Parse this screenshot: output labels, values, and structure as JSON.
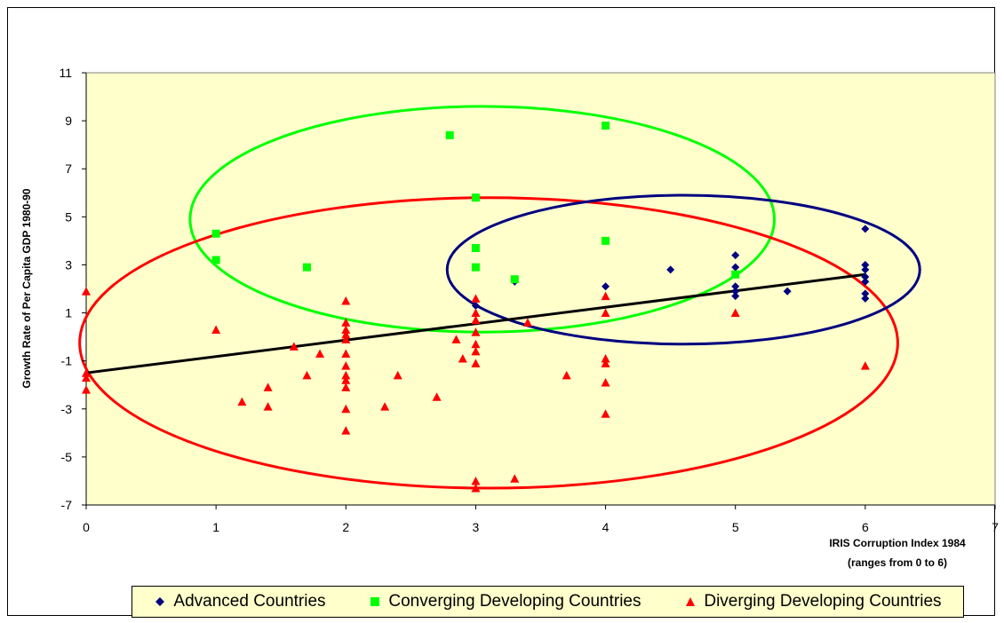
{
  "chart_data": {
    "type": "scatter",
    "title": "",
    "xlabel_line1": "IRIS Corruption Index 1984",
    "xlabel_line2": "(ranges from 0 to 6)",
    "ylabel": "Growth Rate of Per Capita GDP 1980-90",
    "xlim": [
      0,
      7
    ],
    "ylim": [
      -7,
      11
    ],
    "x_ticks": [
      "0",
      "1",
      "2",
      "3",
      "4",
      "5",
      "6",
      "7"
    ],
    "y_ticks": [
      "11",
      "9",
      "7",
      "5",
      "3",
      "1",
      "-1",
      "-3",
      "-5",
      "-7"
    ],
    "grid": false,
    "legend_position": "bottom",
    "plot_background": "#ffffcc",
    "series": [
      {
        "name": "Advanced Countries",
        "color": "#000080",
        "marker": "diamond",
        "points": [
          [
            3.0,
            1.3
          ],
          [
            3.3,
            2.3
          ],
          [
            4.0,
            2.1
          ],
          [
            4.5,
            2.8
          ],
          [
            5.0,
            3.4
          ],
          [
            5.0,
            2.9
          ],
          [
            5.0,
            2.1
          ],
          [
            5.0,
            1.9
          ],
          [
            5.0,
            1.7
          ],
          [
            5.4,
            1.9
          ],
          [
            6.0,
            4.5
          ],
          [
            6.0,
            3.0
          ],
          [
            6.0,
            2.8
          ],
          [
            6.0,
            2.5
          ],
          [
            6.0,
            2.3
          ],
          [
            6.0,
            1.8
          ],
          [
            6.0,
            1.6
          ]
        ]
      },
      {
        "name": "Converging Developing Countries",
        "color": "#00ff00",
        "marker": "square",
        "points": [
          [
            1.0,
            4.3
          ],
          [
            1.0,
            3.2
          ],
          [
            1.7,
            2.9
          ],
          [
            2.8,
            8.4
          ],
          [
            3.0,
            5.8
          ],
          [
            3.0,
            3.7
          ],
          [
            3.0,
            2.9
          ],
          [
            3.3,
            2.4
          ],
          [
            4.0,
            8.8
          ],
          [
            4.0,
            4.0
          ],
          [
            5.0,
            2.6
          ]
        ]
      },
      {
        "name": "Diverging Developing Countries",
        "color": "#ff0000",
        "marker": "triangle",
        "points": [
          [
            0.0,
            1.9
          ],
          [
            0.0,
            -1.5
          ],
          [
            0.0,
            -1.7
          ],
          [
            0.0,
            -2.2
          ],
          [
            1.0,
            0.3
          ],
          [
            1.2,
            -2.7
          ],
          [
            1.4,
            -2.1
          ],
          [
            1.4,
            -2.9
          ],
          [
            1.6,
            -0.4
          ],
          [
            1.7,
            -1.6
          ],
          [
            1.8,
            -0.7
          ],
          [
            2.0,
            1.5
          ],
          [
            2.0,
            0.6
          ],
          [
            2.0,
            0.3
          ],
          [
            2.0,
            0.1
          ],
          [
            2.0,
            -0.1
          ],
          [
            2.0,
            -0.7
          ],
          [
            2.0,
            -1.2
          ],
          [
            2.0,
            -1.6
          ],
          [
            2.0,
            -1.8
          ],
          [
            2.0,
            -2.1
          ],
          [
            2.0,
            -3.0
          ],
          [
            2.0,
            -3.9
          ],
          [
            2.3,
            -2.9
          ],
          [
            2.4,
            -1.6
          ],
          [
            2.7,
            -2.5
          ],
          [
            2.85,
            -0.1
          ],
          [
            2.9,
            -0.9
          ],
          [
            3.0,
            1.6
          ],
          [
            3.0,
            1.0
          ],
          [
            3.0,
            0.7
          ],
          [
            3.0,
            0.2
          ],
          [
            3.0,
            -0.3
          ],
          [
            3.0,
            -0.6
          ],
          [
            3.0,
            -1.1
          ],
          [
            3.0,
            -6.0
          ],
          [
            3.0,
            -6.3
          ],
          [
            3.3,
            -5.9
          ],
          [
            3.4,
            0.6
          ],
          [
            3.7,
            -1.6
          ],
          [
            4.0,
            1.7
          ],
          [
            4.0,
            1.0
          ],
          [
            4.0,
            -0.9
          ],
          [
            4.0,
            -1.1
          ],
          [
            4.0,
            -1.9
          ],
          [
            4.0,
            -3.2
          ],
          [
            5.0,
            1.0
          ],
          [
            6.0,
            -1.2
          ]
        ]
      }
    ],
    "trendline": {
      "color": "#000000",
      "points": [
        [
          0.0,
          -1.5
        ],
        [
          6.0,
          2.6
        ]
      ]
    },
    "ellipses": [
      {
        "group": "Converging Developing Countries",
        "color": "#00ff00",
        "cx": 3.05,
        "cy": 4.9,
        "rx": 2.25,
        "ry": 4.7
      },
      {
        "group": "Diverging Developing Countries",
        "color": "#ff0000",
        "cx": 3.1,
        "cy": -0.25,
        "rx": 3.15,
        "ry": 6.05
      },
      {
        "group": "Advanced Countries",
        "color": "#000080",
        "cx": 4.6,
        "cy": 2.8,
        "rx": 1.82,
        "ry": 3.1
      }
    ]
  }
}
